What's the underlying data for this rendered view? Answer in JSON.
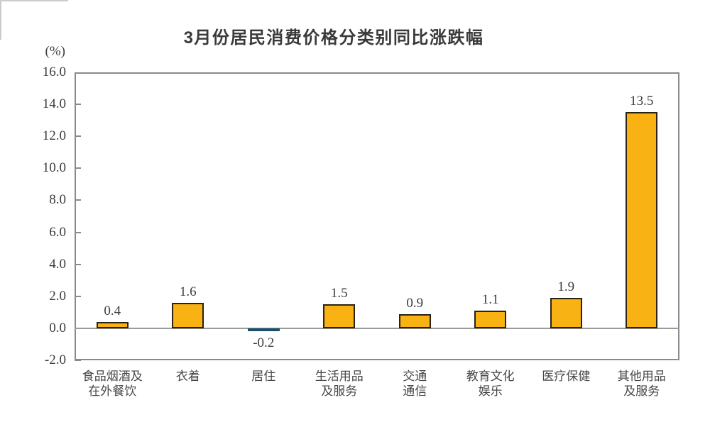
{
  "page": {
    "background": "#ffffff"
  },
  "chart_data": {
    "type": "bar",
    "title": "3月份居民消费价格分类别同比涨跌幅",
    "ylabel": "(%)",
    "xlabel": "",
    "categories": [
      "食品烟酒及\n在外餐饮",
      "衣着",
      "居住",
      "生活用品\n及服务",
      "交通\n通信",
      "教育文化\n娱乐",
      "医疗保健",
      "其他用品\n及服务"
    ],
    "values": [
      0.4,
      1.6,
      -0.2,
      1.5,
      0.9,
      1.1,
      1.9,
      13.5
    ],
    "data_labels": [
      "0.4",
      "1.6",
      "-0.2",
      "1.5",
      "0.9",
      "1.1",
      "1.9",
      "13.5"
    ],
    "ylim": [
      -2.0,
      16.0
    ],
    "ytick_step": 2.0,
    "ytick_labels": [
      "16.0",
      "14.0",
      "12.0",
      "10.0",
      "8.0",
      "6.0",
      "4.0",
      "2.0",
      "0.0",
      "-2.0"
    ],
    "grid": false,
    "legend_position": "none",
    "colors": {
      "bar_positive_fill": "#F8B213",
      "bar_positive_border": "#2a2213",
      "bar_negative_fill": "#2E93CC",
      "bar_negative_border": "#1b4e6b",
      "axis_frame": "#8a8a8a",
      "zero_line": "#9a9a9a",
      "text": "#3c3c3c"
    }
  }
}
